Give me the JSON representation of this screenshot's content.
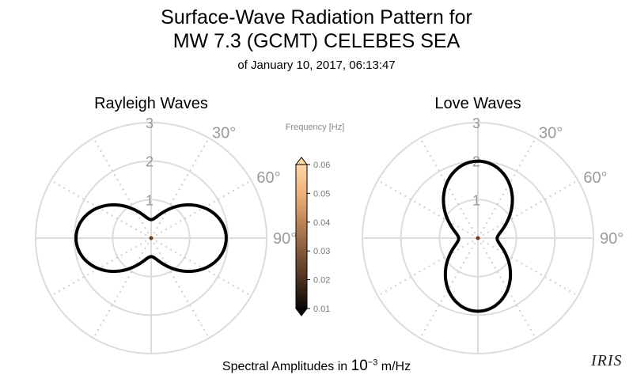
{
  "title": {
    "line1": "Surface-Wave Radiation Pattern for",
    "line2": "MW 7.3 (GCMT) CELEBES SEA",
    "line3": "of January 10, 2017, 06:13:47"
  },
  "footer": {
    "prefix": "Spectral Amplitudes in ",
    "base": "10",
    "exponent": "−3",
    "unit": " m/Hz"
  },
  "logo": "IRIS",
  "chart_data": [
    {
      "type": "polar",
      "title": "Rayleigh Waves",
      "r_ticks": [
        "1",
        "2",
        "3"
      ],
      "r_max": 3,
      "angle_ticks": [
        "30°",
        "60°",
        "90°"
      ],
      "grid": true,
      "pattern": "two-lobed (east-west), max radius ~2.0 at 90° and 270°",
      "pattern_fn": "rayleigh",
      "color": "#000000"
    },
    {
      "type": "polar",
      "title": "Love Waves",
      "r_ticks": [
        "1",
        "2",
        "3"
      ],
      "r_max": 3,
      "angle_ticks": [
        "30°",
        "60°",
        "90°"
      ],
      "grid": true,
      "pattern": "two-lobed (north-south), max radius ~2.0 near 0°, ~1.9 near 180°",
      "pattern_fn": "love",
      "color": "#000000"
    },
    {
      "type": "colorbar",
      "label": "Frequency [Hz]",
      "ticks": [
        "0.06",
        "0.05",
        "0.04",
        "0.03",
        "0.02",
        "0.01"
      ],
      "min": 0.01,
      "max": 0.06,
      "colors": [
        "#0a0604",
        "#5a3a24",
        "#b07a50",
        "#f0b27a",
        "#ffd8a8"
      ]
    }
  ]
}
